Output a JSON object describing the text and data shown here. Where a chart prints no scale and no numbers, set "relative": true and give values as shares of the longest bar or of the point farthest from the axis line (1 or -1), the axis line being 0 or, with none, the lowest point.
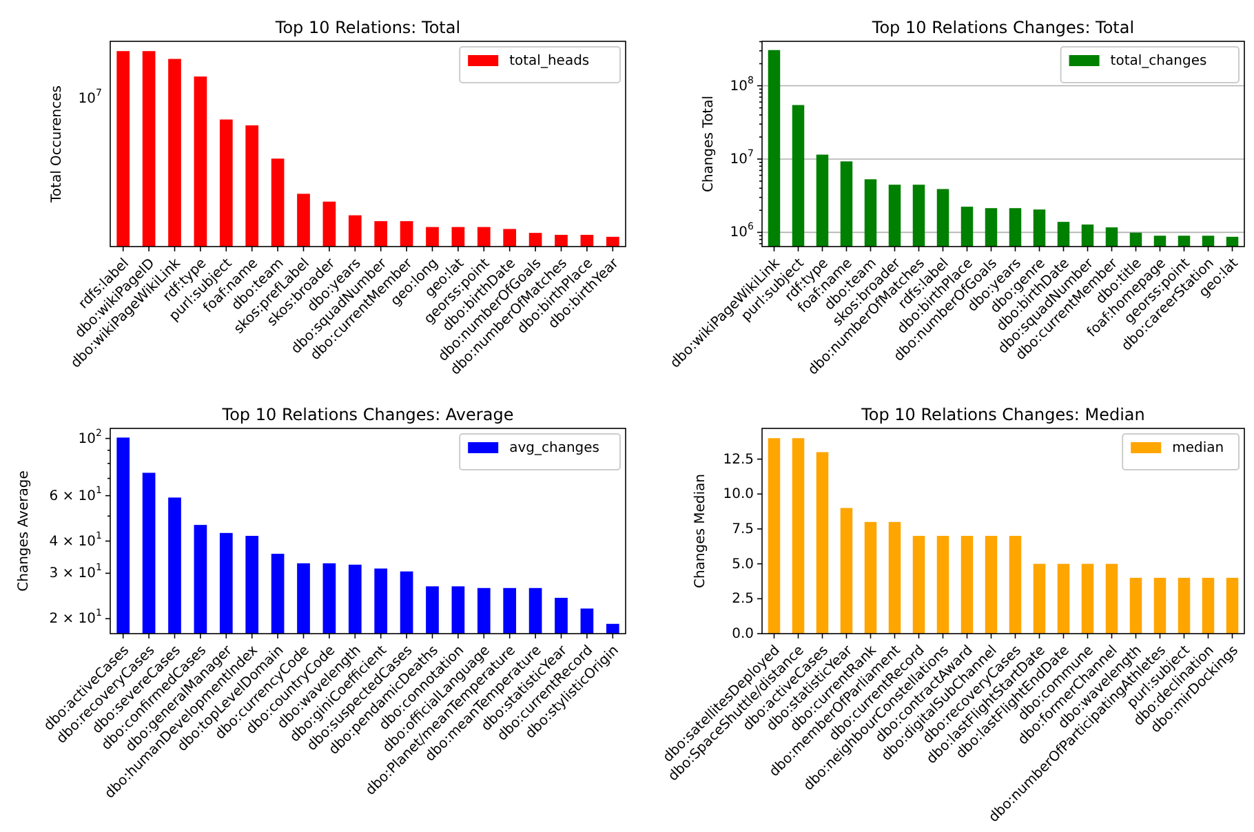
{
  "chart_data": [
    {
      "type": "bar",
      "title": "Top 10 Relations: Total",
      "ylabel": "Total Occurences",
      "categories": [
        "rdfs:label",
        "dbo:wikiPageID",
        "dbo:wikiPageWikiLink",
        "rdf:type",
        "purl:subject",
        "foaf:name",
        "dbo:team",
        "skos:prefLabel",
        "skos:broader",
        "dbo:years",
        "dbo:squadNumber",
        "dbo:currentMember",
        "geo:long",
        "geo:lat",
        "georss:point",
        "dbo:birthDate",
        "dbo:numberOfGoals",
        "dbo:numberOfMatches",
        "dbo:birthPlace",
        "dbo:birthYear"
      ],
      "series": [
        {
          "name": "total_heads",
          "color": "#ff0000",
          "values": [
            1,
            1,
            0.96,
            0.87,
            0.65,
            0.62,
            0.45,
            0.27,
            0.23,
            0.16,
            0.13,
            0.13,
            0.1,
            0.1,
            0.1,
            0.09,
            0.07,
            0.06,
            0.06,
            0.05
          ]
        }
      ],
      "relative": true,
      "annotations": [
        "10$^{7}$"
      ],
      "legend": "top right"
    },
    {
      "type": "bar",
      "title": "Top 10 Relations Changes: Total",
      "ylabel": "Changes Total",
      "categories": [
        "dbo:wikiPageWikiLink",
        "purl:subject",
        "rdf:type",
        "foaf:name",
        "dbo:team",
        "skos:broader",
        "dbo:numberOfMatches",
        "rdfs:label",
        "dbo:birthPlace",
        "dbo:numberOfGoals",
        "dbo:years",
        "dbo:genre",
        "dbo:birthDate",
        "dbo:squadNumber",
        "dbo:currentMember",
        "dbo:title",
        "foaf:homepage",
        "georss:point",
        "dbo:careerStation",
        "geo:lat"
      ],
      "series": [
        {
          "name": "total_changes",
          "color": "#008000",
          "values": [
            307000000,
            54600000,
            11500000,
            9300000,
            5300000,
            4470000,
            4470000,
            3900000,
            2240000,
            2140000,
            2140000,
            2050000,
            1390000,
            1280000,
            1170000,
            990000,
            900000,
            900000,
            900000,
            870000
          ]
        }
      ],
      "log": "y",
      "ylim": [
        640000,
        404000000
      ],
      "yticks": [
        {
          "value": 700000,
          "label": null
        },
        {
          "value": 800000,
          "label": null
        },
        {
          "value": 900000,
          "label": null
        },
        {
          "value": 1000000,
          "label": "10$^{6}$"
        },
        {
          "value": 2000000,
          "label": null
        },
        {
          "value": 3000000,
          "label": null
        },
        {
          "value": 4000000,
          "label": null
        },
        {
          "value": 5000000,
          "label": null
        },
        {
          "value": 6000000,
          "label": null
        },
        {
          "value": 7000000,
          "label": null
        },
        {
          "value": 8000000,
          "label": null
        },
        {
          "value": 9000000,
          "label": null
        },
        {
          "value": 10000000,
          "label": "10$^{7}$"
        },
        {
          "value": 20000000,
          "label": null
        },
        {
          "value": 30000000,
          "label": null
        },
        {
          "value": 40000000,
          "label": null
        },
        {
          "value": 50000000,
          "label": null
        },
        {
          "value": 60000000,
          "label": null
        },
        {
          "value": 70000000,
          "label": null
        },
        {
          "value": 80000000,
          "label": null
        },
        {
          "value": 90000000,
          "label": null
        },
        {
          "value": 100000000,
          "label": "10$^{8}$"
        },
        {
          "value": 200000000,
          "label": null
        },
        {
          "value": 300000000,
          "label": null
        },
        {
          "value": 400000000,
          "label": null
        }
      ],
      "grid": "y",
      "legend": "top right"
    },
    {
      "type": "bar",
      "title": "Top 10 Relations Changes: Average",
      "ylabel": "Changes Average",
      "categories": [
        "dbo:activeCases",
        "dbo:recoveryCases",
        "dbo:severeCases",
        "dbo:confirmedCases",
        "dbo:generalManager",
        "dbo:humanDevelopmentIndex",
        "dbo:topLevelDomain",
        "dbo:currencyCode",
        "dbo:countryCode",
        "dbo:wavelength",
        "dbo:giniCoefficient",
        "dbo:suspectedCases",
        "dbo:pendamicDeaths",
        "dbo:connotation",
        "dbo:officialLanguage",
        "dbo:Planet/meanTemperature",
        "dbo:meanTemperature",
        "dbo:statisticYear",
        "dbo:currentRecord",
        "dbo:stylisticOrigin"
      ],
      "series": [
        {
          "name": "avg_changes",
          "color": "#0000ff",
          "values": [
            100.8,
            73.6,
            59,
            46.2,
            43,
            41.9,
            35.7,
            32.8,
            32.8,
            32.4,
            31.3,
            30.5,
            26.7,
            26.7,
            26.3,
            26.3,
            26.3,
            24.1,
            21.9,
            19.1
          ]
        }
      ],
      "log": "y",
      "ylim": [
        17.5,
        109.4
      ],
      "yticks": [
        {
          "value": 20,
          "label": "2 × 10$^{1}$"
        },
        {
          "value": 30,
          "label": "3 × 10$^{1}$"
        },
        {
          "value": 40,
          "label": "4 × 10$^{1}$"
        },
        {
          "value": 50,
          "label": null
        },
        {
          "value": 60,
          "label": "6 × 10$^{1}$"
        },
        {
          "value": 70,
          "label": null
        },
        {
          "value": 80,
          "label": null
        },
        {
          "value": 90,
          "label": null
        },
        {
          "value": 100,
          "label": "10$^{2}$"
        }
      ],
      "legend": "top right"
    },
    {
      "type": "bar",
      "title": "Top 10 Relations Changes: Median",
      "ylabel": "Changes Median",
      "categories": [
        "dbo:satellitesDeployed",
        "dbo:SpaceShuttle/distance",
        "dbo:activeCases",
        "dbo:statisticYear",
        "dbo:currentRank",
        "dbo:memberOfParliament",
        "dbo:currentRecord",
        "dbo:neighbourConstellations",
        "dbo:contractAward",
        "dbo:digitalSubChannel",
        "dbo:recoveryCases",
        "dbo:lastFlightStartDate",
        "dbo:lastFlightEndDate",
        "dbo:commune",
        "dbo:formerChannel",
        "dbo:wavelength",
        "dbo:numberOfParticipatingAthletes",
        "purl:subject",
        "dbo:declination",
        "dbo:mirDockings"
      ],
      "series": [
        {
          "name": "median",
          "color": "#ffa500",
          "values": [
            14,
            14,
            13,
            9,
            8,
            8,
            7,
            7,
            7,
            7,
            7,
            5,
            5,
            5,
            5,
            4,
            4,
            4,
            4,
            4
          ]
        }
      ],
      "ylim": [
        0,
        14.7
      ],
      "yticks": [
        {
          "value": 0,
          "label": "0.0"
        },
        2.5,
        {
          "value": 5,
          "label": "5.0"
        },
        7.5,
        {
          "value": 10,
          "label": "10.0"
        },
        12.5
      ],
      "legend": "top right"
    }
  ]
}
